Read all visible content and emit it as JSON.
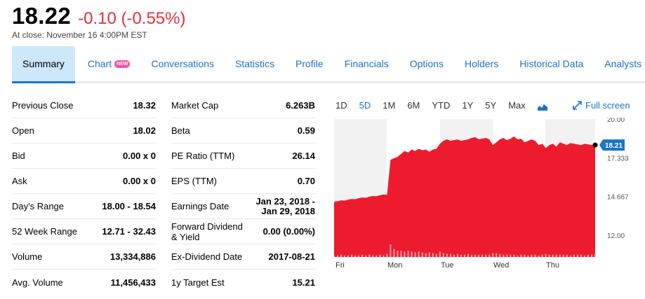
{
  "quote": {
    "price": "18.22",
    "change": "-0.10 (-0.55%)",
    "close_time": "At close: November 16 4:00PM EST"
  },
  "tabs": [
    {
      "label": "Summary",
      "active": true
    },
    {
      "label": "Chart",
      "badge": "NEW"
    },
    {
      "label": "Conversations"
    },
    {
      "label": "Statistics"
    },
    {
      "label": "Profile"
    },
    {
      "label": "Financials"
    },
    {
      "label": "Options"
    },
    {
      "label": "Holders"
    },
    {
      "label": "Historical Data"
    },
    {
      "label": "Analysts"
    }
  ],
  "left_stats": [
    {
      "label": "Previous Close",
      "value": "18.32"
    },
    {
      "label": "Open",
      "value": "18.02"
    },
    {
      "label": "Bid",
      "value": "0.00 x 0"
    },
    {
      "label": "Ask",
      "value": "0.00 x 0"
    },
    {
      "label": "Day's Range",
      "value": "18.00 - 18.54"
    },
    {
      "label": "52 Week Range",
      "value": "12.71 - 32.43"
    },
    {
      "label": "Volume",
      "value": "13,334,886"
    },
    {
      "label": "Avg. Volume",
      "value": "11,456,433"
    }
  ],
  "right_stats": [
    {
      "label": "Market Cap",
      "value": "6.263B"
    },
    {
      "label": "Beta",
      "value": "0.59"
    },
    {
      "label": "PE Ratio (TTM)",
      "value": "26.14"
    },
    {
      "label": "EPS (TTM)",
      "value": "0.70"
    },
    {
      "label": "Earnings Date",
      "value_line1": "Jan 23, 2018 -",
      "value_line2": "Jan 29, 2018"
    },
    {
      "label_line1": "Forward Dividend",
      "label_line2": "& Yield",
      "value": "0.00 (0.00%)"
    },
    {
      "label": "Ex-Dividend Date",
      "value": "2017-08-21"
    },
    {
      "label": "1y Target Est",
      "value": "15.21"
    }
  ],
  "chart_controls": {
    "ranges": [
      "1D",
      "5D",
      "1M",
      "6M",
      "YTD",
      "1Y",
      "5Y",
      "Max"
    ],
    "active_range": "5D",
    "chart_type_icon": "mountain-chart-icon",
    "fullscreen_label": "Full screen",
    "fullscreen_icon": "expand-arrow-icon"
  },
  "chart_data": {
    "type": "area",
    "x_labels": [
      "Fri",
      "Mon",
      "Tue",
      "Wed",
      "Thu"
    ],
    "y_ticks": [
      "20.00",
      "17.333",
      "14.667",
      "12.00"
    ],
    "ylim": [
      10.5,
      20.0
    ],
    "current_price_label": "18.21",
    "current_price": 18.21,
    "fill_color": "#ec1c2e",
    "current_price_tag_color": "#1e74c5",
    "series": [
      {
        "values": [
          14.3,
          14.35,
          14.4,
          14.38,
          14.45,
          14.5,
          14.48,
          14.55,
          14.6,
          14.58,
          14.65,
          14.7,
          14.68,
          14.75,
          14.8,
          14.78,
          17.2,
          17.3,
          17.4,
          17.6,
          17.8,
          17.7,
          17.9,
          17.8,
          17.95,
          17.85,
          17.9,
          17.75,
          17.9,
          17.95,
          18.3,
          18.5,
          18.6,
          18.5,
          18.55,
          18.6,
          18.5,
          18.55,
          18.6,
          18.7,
          18.75,
          18.6,
          18.65,
          18.7,
          18.6,
          18.2,
          18.4,
          18.6,
          18.7,
          18.55,
          18.65,
          18.8,
          18.6,
          18.65,
          18.4,
          18.5,
          18.6,
          18.5,
          18.2,
          18.3,
          18.0,
          18.2,
          18.3,
          18.1,
          18.4,
          18.3,
          18.2,
          18.35,
          18.3,
          18.25,
          18.2,
          18.3,
          18.25,
          18.22,
          18.21
        ]
      }
    ],
    "volume_series": [
      2,
      2,
      3,
      2,
      2,
      3,
      2,
      2,
      3,
      2,
      3,
      2,
      2,
      3,
      2,
      4,
      16,
      10,
      8,
      8,
      7,
      8,
      7,
      6,
      7,
      6,
      5,
      6,
      5,
      4,
      7,
      5,
      4,
      4,
      3,
      4,
      3,
      3,
      4,
      3,
      3,
      3,
      3,
      3,
      3,
      5,
      5,
      4,
      3,
      3,
      3,
      3,
      2,
      3,
      3,
      2,
      3,
      3,
      2,
      3,
      4,
      3,
      3,
      3,
      3,
      3,
      3,
      2,
      3,
      3,
      3,
      2,
      3,
      3,
      4
    ]
  }
}
